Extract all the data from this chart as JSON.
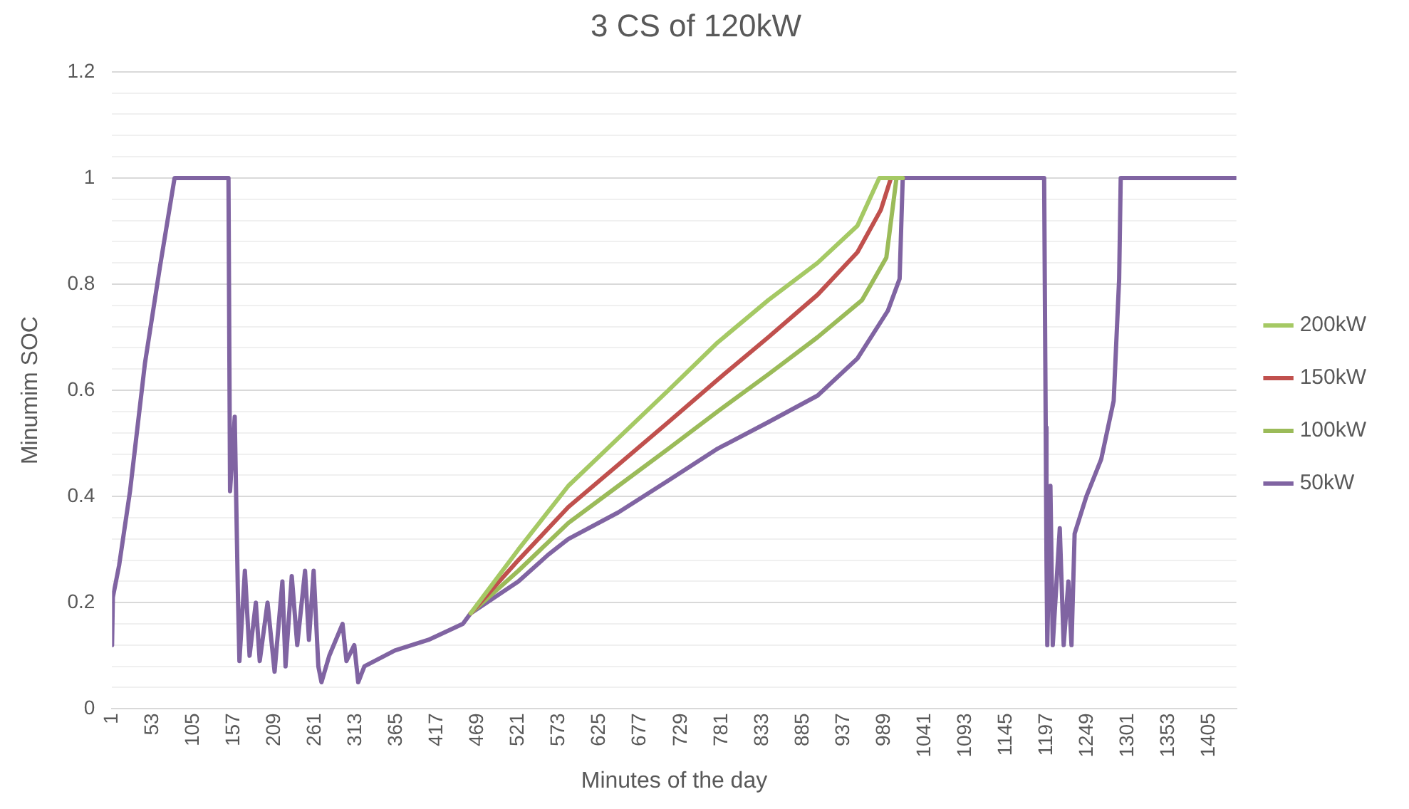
{
  "chart_data": {
    "type": "line",
    "title": "3 CS of 120kW",
    "xlabel": "Minutes of the day",
    "ylabel": "Minumim SOC",
    "xlim": [
      1,
      1440
    ],
    "xticks": [
      1,
      53,
      105,
      157,
      209,
      261,
      313,
      365,
      417,
      469,
      521,
      573,
      625,
      677,
      729,
      781,
      833,
      885,
      937,
      989,
      1041,
      1093,
      1145,
      1197,
      1249,
      1301,
      1353,
      1405
    ],
    "ylim": [
      0,
      1.2
    ],
    "yticks": [
      0,
      {
        "value": 0.04,
        "label": null
      },
      {
        "value": 0.08,
        "label": null
      },
      {
        "value": 0.12,
        "label": null
      },
      {
        "value": 0.16,
        "label": null
      },
      0.2,
      {
        "value": 0.24,
        "label": null
      },
      {
        "value": 0.28,
        "label": null
      },
      {
        "value": 0.32,
        "label": null
      },
      {
        "value": 0.36,
        "label": null
      },
      0.4,
      {
        "value": 0.44,
        "label": null
      },
      {
        "value": 0.48,
        "label": null
      },
      {
        "value": 0.52,
        "label": null
      },
      {
        "value": 0.56,
        "label": null
      },
      0.6,
      {
        "value": 0.64,
        "label": null
      },
      {
        "value": 0.68,
        "label": null
      },
      {
        "value": 0.72,
        "label": null
      },
      {
        "value": 0.76,
        "label": null
      },
      0.8,
      {
        "value": 0.84,
        "label": null
      },
      {
        "value": 0.88,
        "label": null
      },
      {
        "value": 0.92,
        "label": null
      },
      {
        "value": 0.96,
        "label": null
      },
      1,
      {
        "value": 1.04,
        "label": null
      },
      {
        "value": 1.08,
        "label": null
      },
      {
        "value": 1.12,
        "label": null
      },
      {
        "value": 1.16,
        "label": null
      },
      1.2
    ],
    "grid": "y",
    "legend": "right",
    "marker": "none",
    "line_style": "solid",
    "series": [
      {
        "name": "200kW",
        "color": "#a5c964",
        "x": [
          460,
          521,
          585,
          649,
          713,
          776,
          841,
          904,
          955,
          983,
          1013
        ],
        "values": [
          0.18,
          0.3,
          0.42,
          0.51,
          0.6,
          0.69,
          0.77,
          0.84,
          0.91,
          1,
          1
        ]
      },
      {
        "name": "150kW",
        "color": "#c0504d",
        "x": [
          460,
          521,
          585,
          649,
          713,
          776,
          841,
          904,
          955,
          985,
          998,
          1013
        ],
        "values": [
          0.18,
          0.28,
          0.38,
          0.46,
          0.54,
          0.62,
          0.7,
          0.78,
          0.86,
          0.94,
          1,
          1
        ]
      },
      {
        "name": "100kW",
        "color": "#9bbb59",
        "x": [
          460,
          521,
          585,
          649,
          713,
          776,
          841,
          904,
          961,
          992,
          1005,
          1013
        ],
        "values": [
          0.18,
          0.26,
          0.35,
          0.42,
          0.49,
          0.56,
          0.63,
          0.7,
          0.77,
          0.85,
          1,
          1
        ]
      },
      {
        "name": "50kW",
        "color": "#8064a2",
        "x": [
          1,
          2,
          10,
          24,
          43,
          62,
          81,
          150,
          152,
          158,
          162,
          164,
          171,
          177,
          185,
          190,
          200,
          209,
          219,
          223,
          231,
          238,
          248,
          253,
          259,
          265,
          269,
          279,
          296,
          301,
          311,
          316,
          324,
          363,
          406,
          450,
          460,
          521,
          559,
          585,
          649,
          713,
          776,
          841,
          904,
          955,
          994,
          1009,
          1013,
          1194,
          1196,
          1197,
          1198,
          1202,
          1205,
          1214,
          1219,
          1225,
          1229,
          1233,
          1248,
          1267,
          1283,
          1286,
          1290,
          1292,
          1440
        ],
        "values": [
          0.12,
          0.21,
          0.27,
          0.41,
          0.65,
          0.83,
          1,
          1,
          0.41,
          0.55,
          0.22,
          0.09,
          0.26,
          0.1,
          0.2,
          0.09,
          0.2,
          0.07,
          0.24,
          0.08,
          0.25,
          0.12,
          0.26,
          0.13,
          0.26,
          0.08,
          0.05,
          0.1,
          0.16,
          0.09,
          0.12,
          0.05,
          0.08,
          0.11,
          0.13,
          0.16,
          0.18,
          0.24,
          0.29,
          0.32,
          0.37,
          0.43,
          0.49,
          0.54,
          0.59,
          0.66,
          0.75,
          0.81,
          1,
          1,
          0.53,
          0.28,
          0.12,
          0.42,
          0.12,
          0.34,
          0.12,
          0.24,
          0.12,
          0.33,
          0.4,
          0.47,
          0.58,
          0.68,
          0.81,
          1,
          1
        ]
      }
    ]
  }
}
